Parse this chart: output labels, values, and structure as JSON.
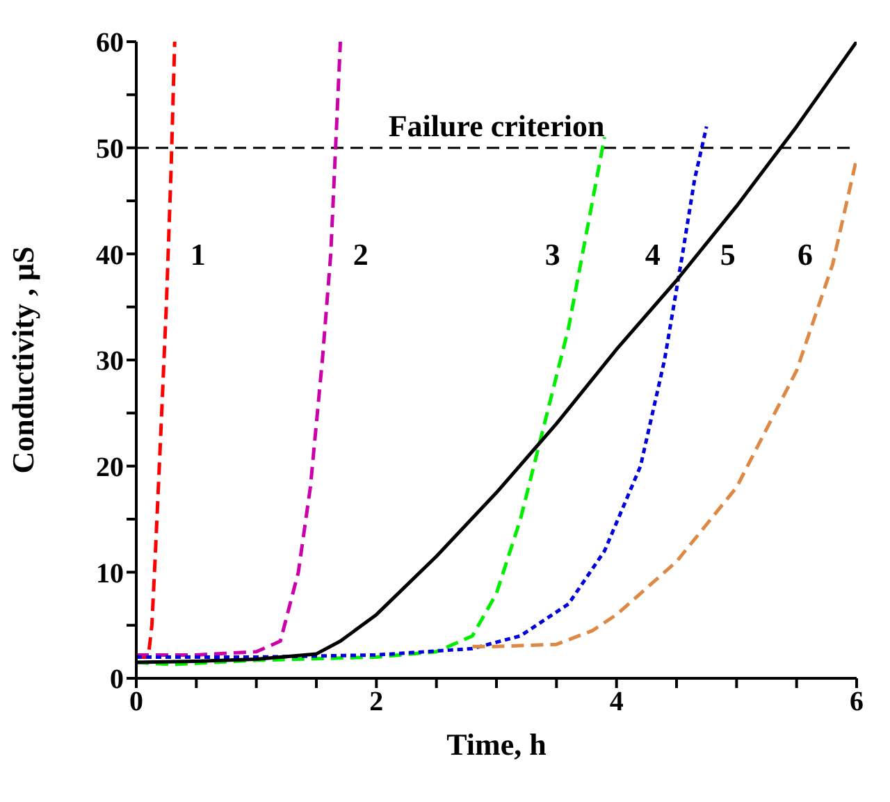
{
  "chart_data": {
    "type": "line",
    "xlabel": "Time, h",
    "ylabel": "Conductivity , μS",
    "xlim": [
      0,
      6
    ],
    "xticks": [
      0,
      {
        "value": 0.5,
        "label": null
      },
      {
        "value": 1,
        "label": null
      },
      {
        "value": 1.5,
        "label": null
      },
      2,
      {
        "value": 2.5,
        "label": null
      },
      {
        "value": 3,
        "label": null
      },
      {
        "value": 3.5,
        "label": null
      },
      4,
      {
        "value": 4.5,
        "label": null
      },
      {
        "value": 5,
        "label": null
      },
      {
        "value": 5.5,
        "label": null
      },
      6
    ],
    "ylim": [
      0,
      60
    ],
    "yticks": [
      0,
      {
        "value": 5,
        "label": null
      },
      10,
      {
        "value": 15,
        "label": null
      },
      20,
      {
        "value": 25,
        "label": null
      },
      30,
      {
        "value": 35,
        "label": null
      },
      40,
      {
        "value": 45,
        "label": null
      },
      50,
      {
        "value": 55,
        "label": null
      },
      60
    ],
    "grid": false,
    "legend": false,
    "marker": "none",
    "series": [
      {
        "name": "1",
        "color": "#ff0000",
        "line_style": "dashed",
        "x": [
          0,
          0.1,
          0.13,
          0.16,
          0.2,
          0.25,
          0.29,
          0.32
        ],
        "values": [
          2,
          2,
          5,
          12,
          22,
          35,
          48,
          60
        ]
      },
      {
        "name": "2",
        "color": "#cc00aa",
        "line_style": "dashed",
        "x": [
          0,
          0.5,
          1,
          1.2,
          1.35,
          1.45,
          1.55,
          1.62,
          1.7
        ],
        "values": [
          2.2,
          2.2,
          2.5,
          3.5,
          10,
          18,
          30,
          40,
          60
        ]
      },
      {
        "name": "3",
        "color": "#00ee00",
        "line_style": "dashed",
        "x": [
          0,
          0.3,
          1,
          2,
          2.5,
          2.8,
          3,
          3.2,
          3.4,
          3.6,
          3.75,
          3.9
        ],
        "values": [
          1.5,
          1.3,
          1.7,
          2,
          2.5,
          4,
          8,
          15,
          24,
          33,
          42,
          51
        ]
      },
      {
        "name": "4",
        "color": "#0000dd",
        "line_style": "dotted",
        "x": [
          0,
          1,
          2,
          2.8,
          3.2,
          3.6,
          3.9,
          4.2,
          4.4,
          4.55,
          4.65,
          4.75
        ],
        "values": [
          2,
          2,
          2.2,
          2.8,
          4,
          7,
          12,
          20,
          30,
          40,
          47,
          52
        ]
      },
      {
        "name": "5",
        "color": "#000000",
        "line_style": "solid",
        "x": [
          0,
          0.5,
          1,
          1.5,
          1.7,
          2,
          2.5,
          3,
          3.5,
          4,
          4.5,
          5,
          5.5,
          6
        ],
        "values": [
          1.5,
          1.6,
          1.8,
          2.3,
          3.5,
          6,
          11.5,
          17.5,
          24,
          31,
          37.5,
          44.5,
          52,
          60
        ]
      },
      {
        "name": "6",
        "color": "#dd8844",
        "line_style": "dashed",
        "x": [
          2.8,
          3,
          3.5,
          3.8,
          4,
          4.5,
          5,
          5.5,
          5.8,
          6
        ],
        "values": [
          3,
          3,
          3.2,
          4.5,
          6,
          11,
          18,
          29,
          39,
          49
        ]
      }
    ],
    "ref_lines": [
      {
        "axis": "y",
        "value": 50,
        "label": "Failure criterion",
        "color": "#000000",
        "line_style": "dashed"
      }
    ]
  }
}
